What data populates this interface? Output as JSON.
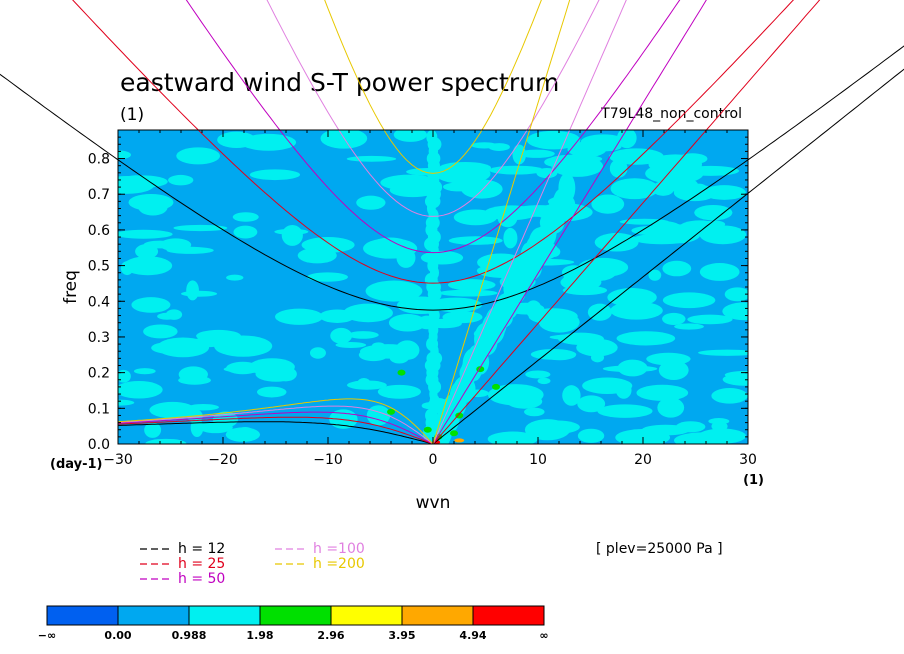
{
  "chart_data": {
    "type": "heatmap",
    "title": "eastward wind S-T power spectrum",
    "subtitle_left": "(1)",
    "subtitle_right": "T79L48_non_control",
    "xlabel": "wvn",
    "ylabel": "freq",
    "x_unit": "(1)",
    "y_unit": "(day-1)",
    "xlim": [
      -30,
      30
    ],
    "ylim": [
      0,
      0.88
    ],
    "x_ticks": [
      -30,
      -20,
      -10,
      0,
      10,
      20,
      30
    ],
    "y_ticks": [
      0.0,
      0.1,
      0.2,
      0.3,
      0.4,
      0.5,
      0.6,
      0.7,
      0.8
    ],
    "x_tick_labels": [
      "−30",
      "−20",
      "−10",
      "0",
      "10",
      "20",
      "30"
    ],
    "y_tick_labels": [
      "0.0",
      "0.1",
      "0.2",
      "0.3",
      "0.4",
      "0.5",
      "0.6",
      "0.7",
      "0.8"
    ],
    "annotation": "[ plev=25000 Pa ]",
    "dispersion_curves": [
      {
        "label": "h = 12",
        "h": 12,
        "color": "#000000"
      },
      {
        "label": "h = 25",
        "h": 25,
        "color": "#e0001c"
      },
      {
        "label": "h = 50",
        "h": 50,
        "color": "#c000c0"
      },
      {
        "label": "h =100",
        "h": 100,
        "color": "#e080e0"
      },
      {
        "label": "h =200",
        "h": 200,
        "color": "#e8c800"
      }
    ],
    "colorbar": {
      "levels": [
        "−∞",
        "0.00",
        "0.988",
        "1.98",
        "2.96",
        "3.95",
        "4.94",
        "∞"
      ],
      "colors": [
        "#0060f0",
        "#00a8f0",
        "#00f0f0",
        "#00e000",
        "#ffff00",
        "#ffa800",
        "#ff0000"
      ]
    },
    "field": {
      "background_level_color": "#00a8f0",
      "features": [
        {
          "name": "kelvin-wave ridge",
          "level_color": "#00f0f0"
        },
        {
          "name": "wavenumber-zero column",
          "level_color": "#00f0f0"
        },
        {
          "name": "low-frequency peaks",
          "level_color": "#00e000"
        }
      ]
    }
  }
}
